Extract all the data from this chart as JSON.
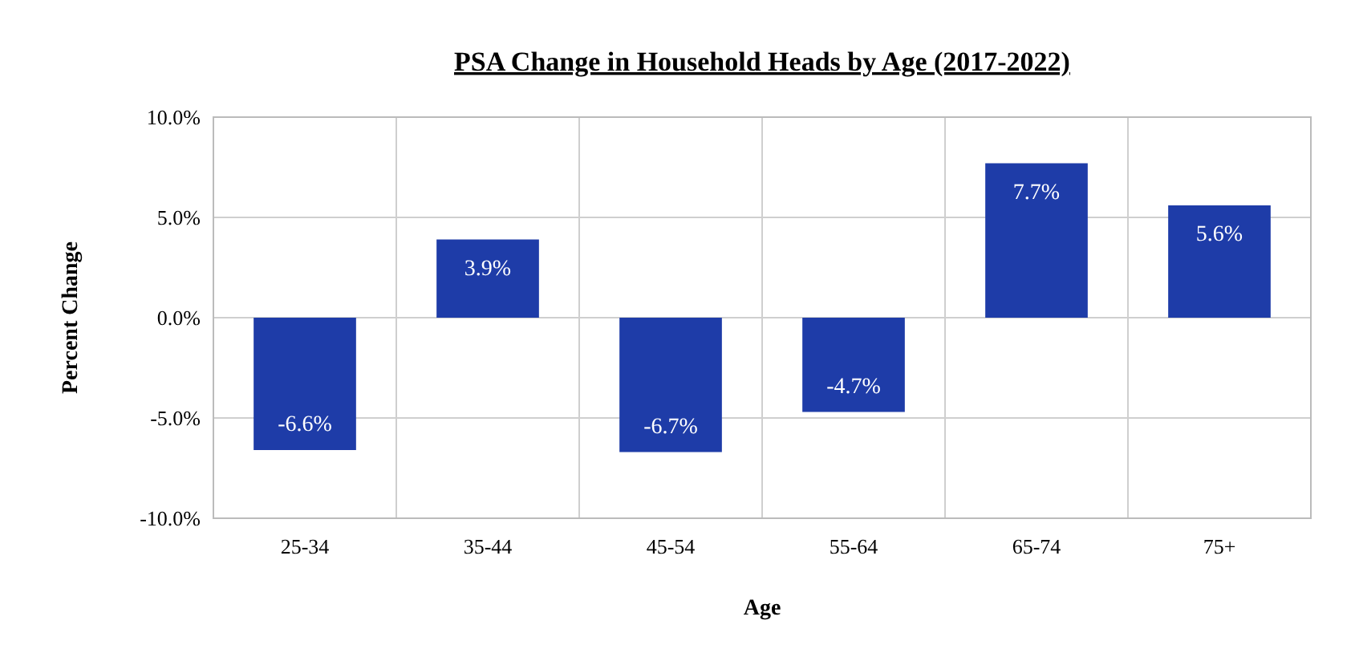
{
  "chart_data": {
    "type": "bar",
    "title": "PSA Change in Household Heads by Age (2017-2022)",
    "xlabel": "Age",
    "ylabel": "Percent Change",
    "categories": [
      "25-34",
      "35-44",
      "45-54",
      "55-64",
      "65-74",
      "75+"
    ],
    "values": [
      -6.6,
      3.9,
      -6.7,
      -4.7,
      7.7,
      5.6
    ],
    "value_labels": [
      "-6.6%",
      "3.9%",
      "-6.7%",
      "-4.7%",
      "7.7%",
      "5.6%"
    ],
    "color": "#1e3ca8",
    "ylim": [
      -10,
      10
    ],
    "yticks": [
      {
        "value": -10,
        "label": "-10.0%"
      },
      {
        "value": -5,
        "label": "-5.0%"
      },
      {
        "value": 0,
        "label": "0.0%"
      },
      {
        "value": 5,
        "label": "5.0%"
      },
      {
        "value": 10,
        "label": "10.0%"
      }
    ],
    "grid": true
  }
}
